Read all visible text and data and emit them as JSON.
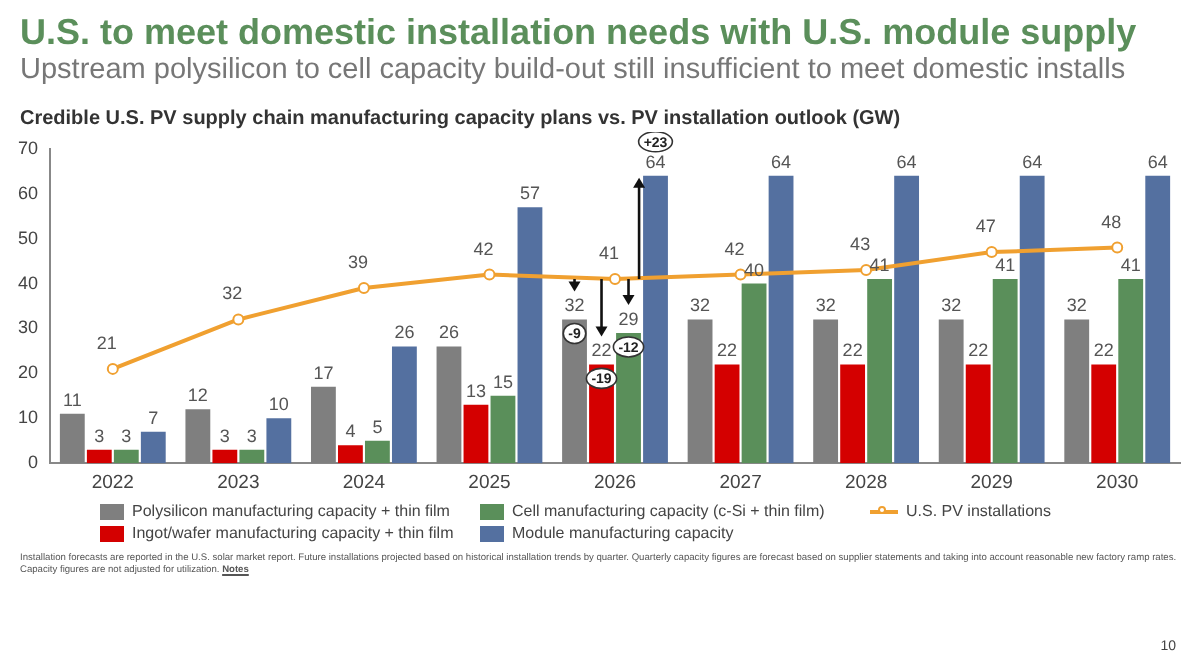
{
  "chart_data": {
    "type": "bar",
    "title": "U.S. to meet domestic installation needs with U.S. module supply",
    "subtitle": "Upstream polysilicon to cell capacity build-out still insufficient to meet domestic installs",
    "ylabel": "Credible U.S. PV supply chain manufacturing capacity plans vs. PV installation outlook (GW)",
    "categories": [
      "2022",
      "2023",
      "2024",
      "2025",
      "2026",
      "2027",
      "2028",
      "2029",
      "2030"
    ],
    "series": [
      {
        "name": "Polysilicon manufacturing capacity + thin film",
        "color": "#7f7f7f",
        "values": [
          11,
          12,
          17,
          26,
          32,
          32,
          32,
          32,
          32
        ]
      },
      {
        "name": "Ingot/wafer manufacturing capacity + thin film",
        "color": "#d40000",
        "values": [
          3,
          3,
          4,
          13,
          22,
          22,
          22,
          22,
          22
        ]
      },
      {
        "name": "Cell manufacturing capacity (c-Si + thin film)",
        "color": "#5a8f5a",
        "values": [
          3,
          3,
          5,
          15,
          29,
          40,
          41,
          41,
          41
        ]
      },
      {
        "name": "Module manufacturing capacity",
        "color": "#5470a0",
        "values": [
          7,
          10,
          26,
          57,
          64,
          64,
          64,
          64,
          64
        ]
      },
      {
        "name": "U.S. PV installations",
        "type": "line",
        "color": "#f0a030",
        "values": [
          21,
          32,
          39,
          42,
          41,
          42,
          43,
          47,
          48
        ]
      }
    ],
    "ylim": [
      0,
      70
    ],
    "yticks": [
      0,
      10,
      20,
      30,
      40,
      50,
      60,
      70
    ],
    "grid": false,
    "legend": "bottom",
    "marker": "circle",
    "data_labels": true,
    "annotations": [
      "+23",
      {
        "text": "-9",
        "x": "2026"
      },
      {
        "text": "-19",
        "x": "2026"
      },
      {
        "text": "-12",
        "x": "2026"
      },
      "Installation forecasts are reported in the U.S. solar market report. Future installations projected based on historical installation trends by quarter. Quarterly capacity figures are forecast based on supplier statements and taking into account reasonable new factory ramp rates. Capacity figures are not adjusted for utilization.",
      "Notes",
      "10"
    ]
  }
}
